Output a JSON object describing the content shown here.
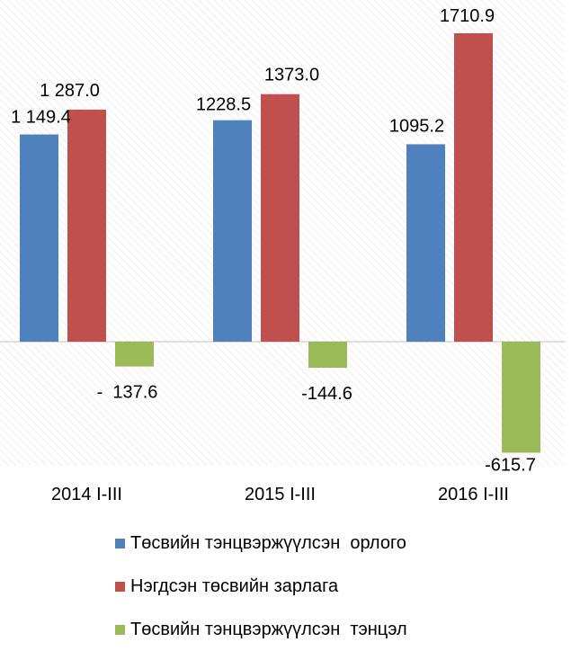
{
  "chart_data": {
    "type": "bar",
    "categories": [
      "2014 I-III",
      "2015 I-III",
      "2016 I-III"
    ],
    "series": [
      {
        "name": "Төсвийн тэнцвэржүүлсэн  орлого",
        "color": "#4F81BD",
        "values": [
          1149.4,
          1228.5,
          1095.2
        ],
        "labels": [
          "1 149.4",
          "1228.5",
          "1095.2"
        ]
      },
      {
        "name": "Нэгдсэн төсвийн зарлага",
        "color": "#C0504D",
        "values": [
          1287.0,
          1373.0,
          1710.9
        ],
        "labels": [
          "1 287.0",
          "1373.0",
          "1710.9"
        ]
      },
      {
        "name": "Төсвийн тэнцвэржүүлсэн  тэнцэл",
        "color": "#9BBB59",
        "values": [
          -137.6,
          -144.6,
          -615.7
        ],
        "labels": [
          "-  137.6",
          "-144.6",
          "-615.7"
        ]
      }
    ],
    "ylim": [
      -720,
      1900
    ],
    "grid": false,
    "background_pattern": "diagonal-hatch",
    "legend_position": "bottom"
  }
}
